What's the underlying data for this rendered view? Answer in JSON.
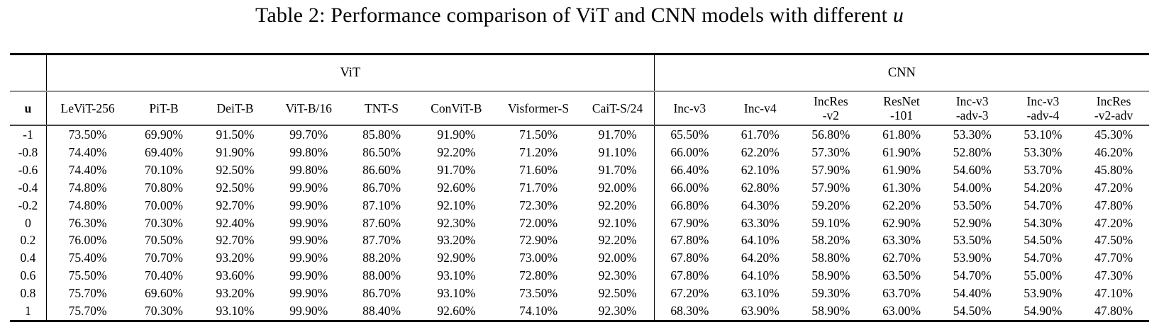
{
  "title": {
    "prefix": "Table 2: Performance comparison of ViT and CNN models with different ",
    "math_symbol": "u"
  },
  "table": {
    "row_header_label": "u",
    "groups": [
      {
        "label": "ViT",
        "span": 8
      },
      {
        "label": "CNN",
        "span": 7
      }
    ],
    "columns": [
      "LeViT-256",
      "PiT-B",
      "DeiT-B",
      "ViT-B/16",
      "TNT-S",
      "ConViT-B",
      "Visformer-S",
      "CaiT-S/24",
      "Inc-v3",
      "Inc-v4",
      "IncRes\n-v2",
      "ResNet\n-101",
      "Inc-v3\n-adv-3",
      "Inc-v3\n-adv-4",
      "IncRes\n-v2-adv"
    ],
    "rows": [
      {
        "u": "-1",
        "values": [
          "73.50%",
          "69.90%",
          "91.50%",
          "99.70%",
          "85.80%",
          "91.90%",
          "71.50%",
          "91.70%",
          "65.50%",
          "61.70%",
          "56.80%",
          "61.80%",
          "53.30%",
          "53.10%",
          "45.30%"
        ]
      },
      {
        "u": "-0.8",
        "values": [
          "74.40%",
          "69.40%",
          "91.90%",
          "99.80%",
          "86.50%",
          "92.20%",
          "71.20%",
          "91.10%",
          "66.00%",
          "62.20%",
          "57.30%",
          "61.90%",
          "52.80%",
          "53.30%",
          "46.20%"
        ]
      },
      {
        "u": "-0.6",
        "values": [
          "74.40%",
          "70.10%",
          "92.50%",
          "99.80%",
          "86.60%",
          "91.70%",
          "71.60%",
          "91.70%",
          "66.40%",
          "62.10%",
          "57.90%",
          "61.90%",
          "54.60%",
          "53.70%",
          "45.80%"
        ]
      },
      {
        "u": "-0.4",
        "values": [
          "74.80%",
          "70.80%",
          "92.50%",
          "99.90%",
          "86.70%",
          "92.60%",
          "71.70%",
          "92.00%",
          "66.00%",
          "62.80%",
          "57.90%",
          "61.30%",
          "54.00%",
          "54.20%",
          "47.20%"
        ]
      },
      {
        "u": "-0.2",
        "values": [
          "74.80%",
          "70.00%",
          "92.70%",
          "99.90%",
          "87.10%",
          "92.10%",
          "72.30%",
          "92.20%",
          "66.80%",
          "64.30%",
          "59.20%",
          "62.20%",
          "53.50%",
          "54.70%",
          "47.80%"
        ]
      },
      {
        "u": "0",
        "values": [
          "76.30%",
          "70.30%",
          "92.40%",
          "99.90%",
          "87.60%",
          "92.30%",
          "72.00%",
          "92.10%",
          "67.90%",
          "63.30%",
          "59.10%",
          "62.90%",
          "52.90%",
          "54.30%",
          "47.20%"
        ]
      },
      {
        "u": "0.2",
        "values": [
          "76.00%",
          "70.50%",
          "92.70%",
          "99.90%",
          "87.70%",
          "93.20%",
          "72.90%",
          "92.20%",
          "67.80%",
          "64.10%",
          "58.20%",
          "63.30%",
          "53.50%",
          "54.50%",
          "47.50%"
        ]
      },
      {
        "u": "0.4",
        "values": [
          "75.40%",
          "70.70%",
          "93.20%",
          "99.90%",
          "88.20%",
          "92.90%",
          "73.00%",
          "92.00%",
          "67.80%",
          "64.20%",
          "58.80%",
          "62.70%",
          "53.90%",
          "54.70%",
          "47.70%"
        ]
      },
      {
        "u": "0.6",
        "values": [
          "75.50%",
          "70.40%",
          "93.60%",
          "99.90%",
          "88.00%",
          "93.10%",
          "72.80%",
          "92.30%",
          "67.80%",
          "64.10%",
          "58.90%",
          "63.50%",
          "54.70%",
          "55.00%",
          "47.30%"
        ]
      },
      {
        "u": "0.8",
        "values": [
          "75.70%",
          "69.60%",
          "93.20%",
          "99.90%",
          "86.70%",
          "93.10%",
          "73.50%",
          "92.50%",
          "67.20%",
          "63.10%",
          "59.30%",
          "63.70%",
          "54.40%",
          "53.90%",
          "47.10%"
        ]
      },
      {
        "u": "1",
        "values": [
          "75.70%",
          "70.30%",
          "93.10%",
          "99.90%",
          "88.40%",
          "92.60%",
          "74.10%",
          "92.30%",
          "68.30%",
          "63.90%",
          "58.90%",
          "63.00%",
          "54.50%",
          "54.90%",
          "47.80%"
        ]
      }
    ]
  },
  "colors": {
    "background": "#ffffff",
    "text": "#000000",
    "rule_heavy": "#000000",
    "rule_gray": "#8f8f8f",
    "rule_dark": "#454545"
  }
}
